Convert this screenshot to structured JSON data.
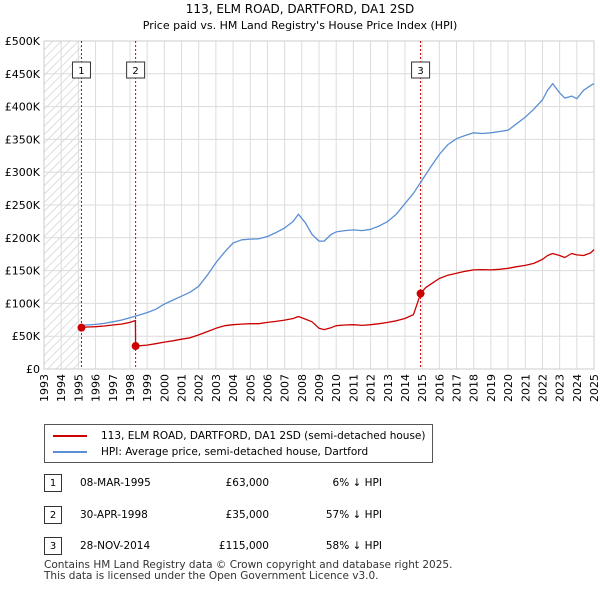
{
  "chart_data": {
    "type": "line",
    "title": "113, ELM ROAD, DARTFORD, DA1 2SD",
    "subtitle": "Price paid vs. HM Land Registry's House Price Index (HPI)",
    "xlabel": "",
    "ylabel": "",
    "xlim": [
      1993,
      2025
    ],
    "ylim": [
      0,
      500000
    ],
    "x_ticks": [
      "1993",
      "1994",
      "1995",
      "1996",
      "1997",
      "1998",
      "1999",
      "2000",
      "2001",
      "2002",
      "2003",
      "2004",
      "2005",
      "2006",
      "2007",
      "2008",
      "2009",
      "2010",
      "2011",
      "2012",
      "2013",
      "2014",
      "2015",
      "2016",
      "2017",
      "2018",
      "2019",
      "2020",
      "2021",
      "2022",
      "2023",
      "2024",
      "2025"
    ],
    "y_ticks": [
      {
        "value": 0,
        "label": "£0"
      },
      {
        "value": 50000,
        "label": "£50K"
      },
      {
        "value": 100000,
        "label": "£100K"
      },
      {
        "value": 150000,
        "label": "£150K"
      },
      {
        "value": 200000,
        "label": "£200K"
      },
      {
        "value": 250000,
        "label": "£250K"
      },
      {
        "value": 300000,
        "label": "£300K"
      },
      {
        "value": 350000,
        "label": "£350K"
      },
      {
        "value": 400000,
        "label": "£400K"
      },
      {
        "value": 450000,
        "label": "£450K"
      },
      {
        "value": 500000,
        "label": "£500K"
      }
    ],
    "grid": true,
    "series": [
      {
        "name": "113, ELM ROAD, DARTFORD, DA1 2SD (semi-detached house)",
        "color": "#cc0000",
        "x": [
          1995.18,
          1995.5,
          1996,
          1996.5,
          1997,
          1997.5,
          1998.0,
          1998.32,
          1998.33,
          1998.6,
          1999,
          1999.5,
          2000,
          2000.5,
          2001,
          2001.5,
          2002,
          2002.5,
          2003,
          2003.5,
          2004,
          2004.5,
          2005,
          2005.5,
          2006,
          2006.5,
          2007,
          2007.5,
          2007.8,
          2008.2,
          2008.6,
          2009.0,
          2009.3,
          2009.7,
          2010,
          2010.5,
          2011,
          2011.5,
          2012,
          2012.5,
          2013,
          2013.5,
          2014,
          2014.5,
          2014.91,
          2015.2,
          2015.6,
          2016,
          2016.5,
          2017,
          2017.5,
          2018,
          2018.5,
          2019,
          2019.5,
          2020,
          2020.5,
          2021,
          2021.5,
          2022,
          2022.3,
          2022.6,
          2023,
          2023.3,
          2023.7,
          2024,
          2024.4,
          2024.8,
          2025
        ],
        "y": [
          63000,
          64000,
          64500,
          65500,
          67000,
          68500,
          71000,
          74000,
          35000,
          35500,
          36500,
          38500,
          41000,
          43000,
          45500,
          47500,
          52000,
          57000,
          62000,
          66000,
          67500,
          68500,
          69000,
          69000,
          71000,
          72500,
          74500,
          77000,
          80000,
          76000,
          72000,
          62000,
          60000,
          63000,
          66000,
          67000,
          67500,
          66500,
          67500,
          69000,
          71000,
          73500,
          77000,
          83000,
          115000,
          124000,
          131000,
          138000,
          143000,
          146000,
          149000,
          151000,
          151500,
          151000,
          152000,
          153500,
          156000,
          158000,
          161000,
          167000,
          173000,
          176000,
          173000,
          170000,
          176000,
          174000,
          173000,
          177000,
          182000
        ]
      },
      {
        "name": "HPI: Average price, semi-detached house, Dartford",
        "color": "#5b8fd4",
        "x": [
          1995.0,
          1995.5,
          1996,
          1996.5,
          1997,
          1997.5,
          1998.0,
          1998.5,
          1999,
          1999.5,
          2000,
          2000.5,
          2001,
          2001.5,
          2002,
          2002.5,
          2003,
          2003.5,
          2004,
          2004.5,
          2005,
          2005.5,
          2006,
          2006.5,
          2007,
          2007.5,
          2007.8,
          2008.2,
          2008.6,
          2009.0,
          2009.3,
          2009.7,
          2010,
          2010.5,
          2011,
          2011.5,
          2012,
          2012.5,
          2013,
          2013.5,
          2014,
          2014.5,
          2015,
          2015.5,
          2016,
          2016.5,
          2017,
          2017.5,
          2018,
          2018.5,
          2019,
          2019.5,
          2020,
          2020.5,
          2021,
          2021.5,
          2022,
          2022.3,
          2022.6,
          2023,
          2023.3,
          2023.7,
          2024,
          2024.4,
          2024.8,
          2025
        ],
        "y": [
          66000,
          67000,
          68000,
          69500,
          72000,
          74500,
          78000,
          82000,
          86000,
          91000,
          99000,
          105000,
          111000,
          117000,
          126000,
          143000,
          162000,
          178000,
          192000,
          197000,
          198000,
          198500,
          202000,
          208000,
          215000,
          225000,
          236000,
          223000,
          205000,
          195000,
          195000,
          205000,
          209000,
          211000,
          212000,
          211000,
          213000,
          218000,
          225000,
          236000,
          252000,
          268000,
          288000,
          308000,
          327000,
          342000,
          351000,
          356000,
          360000,
          359000,
          360000,
          362000,
          364000,
          374000,
          384000,
          396000,
          410000,
          425000,
          435000,
          421000,
          413000,
          416000,
          412000,
          425000,
          432000,
          435000
        ]
      }
    ],
    "sales": [
      {
        "num": "1",
        "x": 1995.18,
        "y": 63000
      },
      {
        "num": "2",
        "x": 1998.33,
        "y": 35000
      },
      {
        "num": "3",
        "x": 2014.91,
        "y": 115000
      }
    ]
  },
  "legend": {
    "property_label": "113, ELM ROAD, DARTFORD, DA1 2SD (semi-detached house)",
    "hpi_label": "HPI: Average price, semi-detached house, Dartford"
  },
  "transactions": [
    {
      "num": "1",
      "date": "08-MAR-1995",
      "price": "£63,000",
      "hpi": "6% ↓ HPI"
    },
    {
      "num": "2",
      "date": "30-APR-1998",
      "price": "£35,000",
      "hpi": "57% ↓ HPI"
    },
    {
      "num": "3",
      "date": "28-NOV-2014",
      "price": "£115,000",
      "hpi": "58% ↓ HPI"
    }
  ],
  "footer": {
    "line1": "Contains HM Land Registry data © Crown copyright and database right 2025.",
    "line2": "This data is licensed under the Open Government Licence v3.0."
  }
}
